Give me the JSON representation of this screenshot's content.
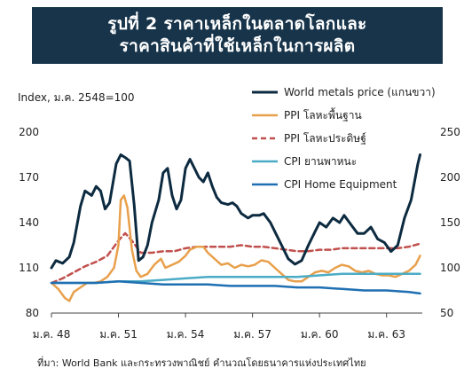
{
  "title": {
    "line1": "รูปที่ 2 ราคาเหล็กในตลาดโลกและ",
    "line2": "ราคาสินค้าที่ใช้เหล็กในการผลิต"
  },
  "chart_data": {
    "type": "line",
    "ylabel_left": "Index, ม.ค. 2548=100",
    "ylim_left": [
      80,
      200
    ],
    "yticks_left": [
      80,
      110,
      140,
      170,
      200
    ],
    "ylim_right": [
      50,
      250
    ],
    "yticks_right": [
      50,
      100,
      150,
      200,
      250
    ],
    "xlim": [
      2005.0,
      2021.6
    ],
    "xticks": [
      {
        "x": 2005,
        "label": "ม.ค. 48"
      },
      {
        "x": 2008,
        "label": "ม.ค. 51"
      },
      {
        "x": 2011,
        "label": "ม.ค. 54"
      },
      {
        "x": 2014,
        "label": "ม.ค. 57"
      },
      {
        "x": 2017,
        "label": "ม.ค. 60"
      },
      {
        "x": 2020,
        "label": "ม.ค. 63"
      }
    ],
    "source": "ที่มา: World Bank และกระทรวงพาณิชย์ คำนวณโดยธนาคารแห่งประเทศไทย",
    "series": [
      {
        "name": "World metals price (แกนขวา)",
        "axis": "right",
        "color": "#0d2b40",
        "dash": "",
        "width": 3,
        "points": [
          [
            2005.0,
            100
          ],
          [
            2005.2,
            108
          ],
          [
            2005.5,
            105
          ],
          [
            2005.8,
            112
          ],
          [
            2006.0,
            128
          ],
          [
            2006.3,
            168
          ],
          [
            2006.5,
            185
          ],
          [
            2006.8,
            180
          ],
          [
            2007.0,
            190
          ],
          [
            2007.2,
            185
          ],
          [
            2007.4,
            165
          ],
          [
            2007.6,
            172
          ],
          [
            2007.9,
            215
          ],
          [
            2008.1,
            225
          ],
          [
            2008.3,
            222
          ],
          [
            2008.5,
            218
          ],
          [
            2008.7,
            170
          ],
          [
            2008.9,
            108
          ],
          [
            2009.1,
            112
          ],
          [
            2009.3,
            125
          ],
          [
            2009.5,
            150
          ],
          [
            2009.8,
            175
          ],
          [
            2010.0,
            205
          ],
          [
            2010.2,
            210
          ],
          [
            2010.4,
            180
          ],
          [
            2010.6,
            165
          ],
          [
            2010.8,
            175
          ],
          [
            2011.0,
            210
          ],
          [
            2011.2,
            220
          ],
          [
            2011.4,
            210
          ],
          [
            2011.6,
            200
          ],
          [
            2011.8,
            195
          ],
          [
            2012.0,
            205
          ],
          [
            2012.2,
            190
          ],
          [
            2012.4,
            178
          ],
          [
            2012.6,
            172
          ],
          [
            2012.9,
            170
          ],
          [
            2013.1,
            172
          ],
          [
            2013.3,
            168
          ],
          [
            2013.5,
            160
          ],
          [
            2013.8,
            155
          ],
          [
            2014.0,
            158
          ],
          [
            2014.3,
            158
          ],
          [
            2014.5,
            160
          ],
          [
            2014.8,
            150
          ],
          [
            2015.0,
            140
          ],
          [
            2015.3,
            125
          ],
          [
            2015.6,
            110
          ],
          [
            2015.9,
            104
          ],
          [
            2016.2,
            108
          ],
          [
            2016.5,
            125
          ],
          [
            2016.8,
            140
          ],
          [
            2017.0,
            150
          ],
          [
            2017.3,
            145
          ],
          [
            2017.6,
            155
          ],
          [
            2017.9,
            150
          ],
          [
            2018.1,
            158
          ],
          [
            2018.4,
            148
          ],
          [
            2018.7,
            138
          ],
          [
            2019.0,
            138
          ],
          [
            2019.3,
            145
          ],
          [
            2019.6,
            132
          ],
          [
            2019.9,
            128
          ],
          [
            2020.2,
            118
          ],
          [
            2020.5,
            125
          ],
          [
            2020.8,
            155
          ],
          [
            2021.1,
            175
          ],
          [
            2021.4,
            215
          ],
          [
            2021.5,
            225
          ]
        ]
      },
      {
        "name": "PPI โลหะพื้นฐาน",
        "axis": "left",
        "color": "#e8a04c",
        "dash": "",
        "width": 2.5,
        "points": [
          [
            2005.0,
            100
          ],
          [
            2005.3,
            96
          ],
          [
            2005.6,
            90
          ],
          [
            2005.8,
            88
          ],
          [
            2006.0,
            94
          ],
          [
            2006.3,
            97
          ],
          [
            2006.6,
            100
          ],
          [
            2006.9,
            100
          ],
          [
            2007.2,
            101
          ],
          [
            2007.5,
            104
          ],
          [
            2007.8,
            110
          ],
          [
            2008.0,
            125
          ],
          [
            2008.1,
            155
          ],
          [
            2008.25,
            158
          ],
          [
            2008.4,
            150
          ],
          [
            2008.6,
            122
          ],
          [
            2008.8,
            108
          ],
          [
            2009.0,
            104
          ],
          [
            2009.3,
            106
          ],
          [
            2009.6,
            112
          ],
          [
            2009.9,
            116
          ],
          [
            2010.1,
            110
          ],
          [
            2010.4,
            112
          ],
          [
            2010.7,
            114
          ],
          [
            2011.0,
            118
          ],
          [
            2011.2,
            122
          ],
          [
            2011.5,
            124
          ],
          [
            2011.8,
            124
          ],
          [
            2012.0,
            120
          ],
          [
            2012.3,
            116
          ],
          [
            2012.6,
            112
          ],
          [
            2012.9,
            113
          ],
          [
            2013.2,
            110
          ],
          [
            2013.5,
            112
          ],
          [
            2013.8,
            111
          ],
          [
            2014.1,
            112
          ],
          [
            2014.4,
            115
          ],
          [
            2014.7,
            114
          ],
          [
            2015.0,
            110
          ],
          [
            2015.3,
            106
          ],
          [
            2015.6,
            102
          ],
          [
            2015.9,
            101
          ],
          [
            2016.2,
            101
          ],
          [
            2016.5,
            104
          ],
          [
            2016.8,
            107
          ],
          [
            2017.1,
            108
          ],
          [
            2017.4,
            107
          ],
          [
            2017.7,
            110
          ],
          [
            2018.0,
            112
          ],
          [
            2018.3,
            111
          ],
          [
            2018.6,
            108
          ],
          [
            2018.9,
            107
          ],
          [
            2019.2,
            108
          ],
          [
            2019.5,
            106
          ],
          [
            2019.8,
            105
          ],
          [
            2020.1,
            105
          ],
          [
            2020.4,
            104
          ],
          [
            2020.7,
            106
          ],
          [
            2021.0,
            108
          ],
          [
            2021.3,
            112
          ],
          [
            2021.5,
            118
          ]
        ]
      },
      {
        "name": "PPI โลหะประดิษฐ์",
        "axis": "left",
        "color": "#c0504d",
        "dash": "6,4",
        "width": 2.5,
        "points": [
          [
            2005.0,
            100
          ],
          [
            2005.5,
            103
          ],
          [
            2006.0,
            107
          ],
          [
            2006.5,
            111
          ],
          [
            2007.0,
            114
          ],
          [
            2007.5,
            118
          ],
          [
            2008.0,
            128
          ],
          [
            2008.3,
            133
          ],
          [
            2008.6,
            128
          ],
          [
            2009.0,
            120
          ],
          [
            2009.5,
            120
          ],
          [
            2010.0,
            121
          ],
          [
            2010.5,
            121
          ],
          [
            2011.0,
            123
          ],
          [
            2011.5,
            124
          ],
          [
            2012.0,
            124
          ],
          [
            2012.5,
            124
          ],
          [
            2013.0,
            124
          ],
          [
            2013.5,
            125
          ],
          [
            2014.0,
            124
          ],
          [
            2014.5,
            124
          ],
          [
            2015.0,
            123
          ],
          [
            2015.5,
            122
          ],
          [
            2016.0,
            121
          ],
          [
            2016.5,
            121
          ],
          [
            2017.0,
            122
          ],
          [
            2017.5,
            122
          ],
          [
            2018.0,
            123
          ],
          [
            2018.5,
            123
          ],
          [
            2019.0,
            123
          ],
          [
            2019.5,
            123
          ],
          [
            2020.0,
            123
          ],
          [
            2020.5,
            123
          ],
          [
            2021.0,
            124
          ],
          [
            2021.5,
            126
          ]
        ]
      },
      {
        "name": "CPI ยานพาหนะ",
        "axis": "left",
        "color": "#4bacc6",
        "dash": "",
        "width": 2.5,
        "points": [
          [
            2005.0,
            100
          ],
          [
            2006.0,
            100
          ],
          [
            2007.0,
            100
          ],
          [
            2008.0,
            101
          ],
          [
            2009.0,
            101
          ],
          [
            2010.0,
            102
          ],
          [
            2011.0,
            103
          ],
          [
            2012.0,
            104
          ],
          [
            2013.0,
            104
          ],
          [
            2014.0,
            104
          ],
          [
            2015.0,
            104
          ],
          [
            2016.0,
            104
          ],
          [
            2017.0,
            105
          ],
          [
            2018.0,
            106
          ],
          [
            2019.0,
            106
          ],
          [
            2020.0,
            106
          ],
          [
            2021.0,
            106
          ],
          [
            2021.5,
            106
          ]
        ]
      },
      {
        "name": "CPI Home Equipment",
        "axis": "left",
        "color": "#1f6fb2",
        "dash": "",
        "width": 2.5,
        "points": [
          [
            2005.0,
            100
          ],
          [
            2006.0,
            100
          ],
          [
            2007.0,
            100
          ],
          [
            2008.0,
            101
          ],
          [
            2009.0,
            100
          ],
          [
            2010.0,
            99
          ],
          [
            2011.0,
            99
          ],
          [
            2012.0,
            99
          ],
          [
            2013.0,
            98
          ],
          [
            2014.0,
            98
          ],
          [
            2015.0,
            98
          ],
          [
            2016.0,
            97
          ],
          [
            2017.0,
            97
          ],
          [
            2018.0,
            96
          ],
          [
            2019.0,
            95
          ],
          [
            2020.0,
            95
          ],
          [
            2021.0,
            94
          ],
          [
            2021.5,
            93
          ]
        ]
      }
    ]
  }
}
